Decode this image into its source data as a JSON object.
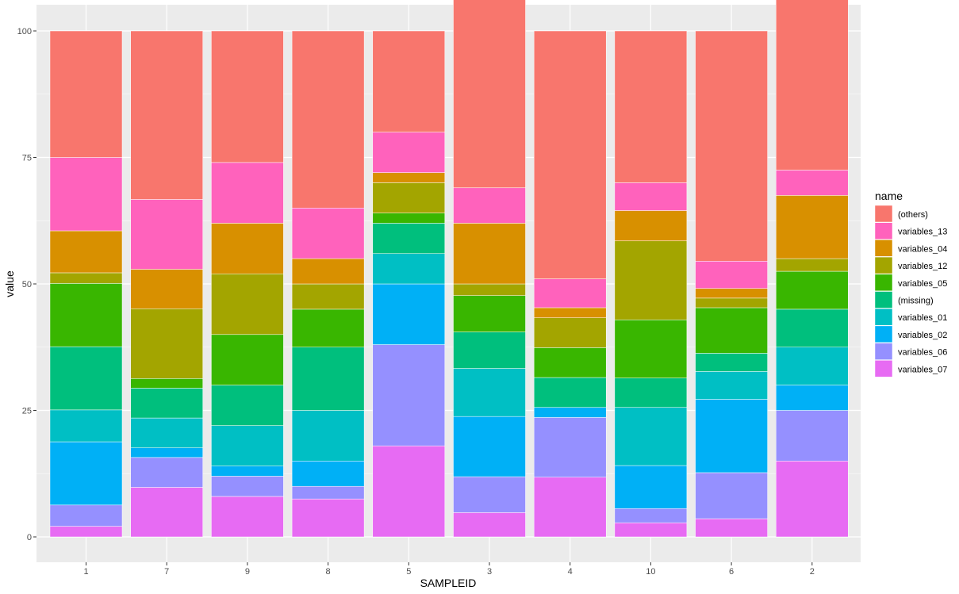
{
  "chart_data": {
    "type": "bar",
    "stacked": true,
    "xlabel": "SAMPLEID",
    "ylabel": "value",
    "ylim": [
      0,
      100
    ],
    "yticks": [
      0,
      25,
      50,
      75,
      100
    ],
    "grid": true,
    "legend_position": "right",
    "legend_title": "name",
    "categories": [
      "1",
      "7",
      "9",
      "8",
      "5",
      "3",
      "4",
      "10",
      "6",
      "2"
    ],
    "series": [
      {
        "name": "(others)",
        "color": "#F8766D",
        "values": [
          25.0,
          33.3,
          26.0,
          35.0,
          20.0,
          38.0,
          49.0,
          30.0,
          45.5,
          35.0
        ]
      },
      {
        "name": "variables_04",
        "color": "#D89000",
        "values": [
          8.3,
          7.8,
          10.0,
          5.0,
          2.0,
          12.0,
          2.0,
          6.0,
          1.9,
          12.5
        ]
      },
      {
        "name": "variables_12",
        "color": "#A3A500",
        "values": [
          2.1,
          13.8,
          12.0,
          5.0,
          6.0,
          2.3,
          5.9,
          15.6,
          1.9,
          2.5
        ]
      },
      {
        "name": "variables_05",
        "color": "#39B600",
        "values": [
          12.5,
          1.9,
          10.0,
          7.5,
          2.0,
          7.2,
          5.9,
          11.5,
          9.0,
          7.5
        ]
      },
      {
        "name": "(missing)",
        "color": "#00BF7D",
        "values": [
          12.5,
          5.9,
          8.0,
          12.5,
          6.0,
          7.2,
          5.9,
          5.8,
          3.6,
          7.5
        ]
      },
      {
        "name": "variables_01",
        "color": "#00BFC4",
        "values": [
          6.3,
          5.9,
          8.0,
          10.0,
          6.0,
          9.5,
          0.0,
          11.5,
          5.5,
          7.5
        ]
      },
      {
        "name": "variables_02",
        "color": "#00B0F6",
        "values": [
          12.5,
          1.9,
          2.0,
          5.0,
          12.0,
          11.9,
          2.0,
          8.5,
          14.5,
          5.0
        ]
      },
      {
        "name": "variables_06",
        "color": "#9590FF",
        "values": [
          4.2,
          5.9,
          4.0,
          2.5,
          20.0,
          7.1,
          11.8,
          2.8,
          9.1,
          10.0
        ]
      },
      {
        "name": "variables_07",
        "color": "#E76BF3",
        "values": [
          2.1,
          9.8,
          8.0,
          7.5,
          18.0,
          4.8,
          11.8,
          2.8,
          3.6,
          15.0
        ]
      },
      {
        "name": "variables_13",
        "color": "#FF62BC",
        "values": [
          14.5,
          13.8,
          12.0,
          10.0,
          8.0,
          7.0,
          5.7,
          5.5,
          5.4,
          5.0
        ]
      }
    ],
    "stack_order_bottom_to_top": [
      "variables_07",
      "variables_06",
      "variables_02",
      "variables_01",
      "(missing)",
      "variables_05",
      "variables_12",
      "variables_04",
      "variables_13",
      "(others)"
    ],
    "colors": {
      "panel_background": "#EBEBEB",
      "grid_major": "#FFFFFF",
      "bar_outline": "#FFFFFF"
    }
  }
}
